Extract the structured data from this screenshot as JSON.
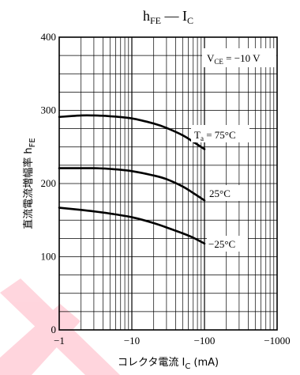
{
  "chart_data": {
    "type": "line",
    "title": {
      "main": "h",
      "sub": "FE",
      "sep": " — I",
      "sub2": "C"
    },
    "condition": {
      "main": "V",
      "sub": "CE",
      "rest": " = −10 V"
    },
    "xlabel": {
      "text": "コレクタ電流  I",
      "sub": "C",
      "unit": "  (mA)"
    },
    "ylabel": {
      "text": "直流電流増幅率  h",
      "sub": "FE"
    },
    "x_scale": "log",
    "x_ticks": [
      -1,
      -10,
      -100,
      -1000
    ],
    "x_tick_labels": [
      "−1",
      "−10",
      "−100",
      "−1000"
    ],
    "y_ticks": [
      0,
      100,
      200,
      300,
      400
    ],
    "y_tick_labels": [
      "0",
      "100",
      "200",
      "300",
      "400"
    ],
    "ylim": [
      0,
      400
    ],
    "grid": true,
    "series": [
      {
        "name": "Ta = 75°C",
        "x": [
          -1,
          -2,
          -3,
          -5,
          -10,
          -20,
          -30,
          -50,
          -70,
          -100
        ],
        "y": [
          291,
          293,
          293,
          292,
          289,
          282,
          276,
          266,
          257,
          247
        ]
      },
      {
        "name": "25°C",
        "x": [
          -1,
          -2,
          -3,
          -5,
          -10,
          -20,
          -30,
          -50,
          -70,
          -100
        ],
        "y": [
          221,
          221,
          221,
          220,
          217,
          211,
          206,
          196,
          187,
          177
        ]
      },
      {
        "name": "−25°C",
        "x": [
          -1,
          -2,
          -3,
          -5,
          -10,
          -20,
          -30,
          -50,
          -70,
          -100
        ],
        "y": [
          167,
          164,
          162,
          159,
          154,
          146,
          140,
          132,
          126,
          118
        ]
      }
    ],
    "curve_labels": [
      {
        "main": "T",
        "sub": "a",
        "rest": " = 75°C"
      },
      {
        "main": "25°C"
      },
      {
        "main": "−25°C"
      }
    ],
    "watermark_color": "#ff0033"
  }
}
